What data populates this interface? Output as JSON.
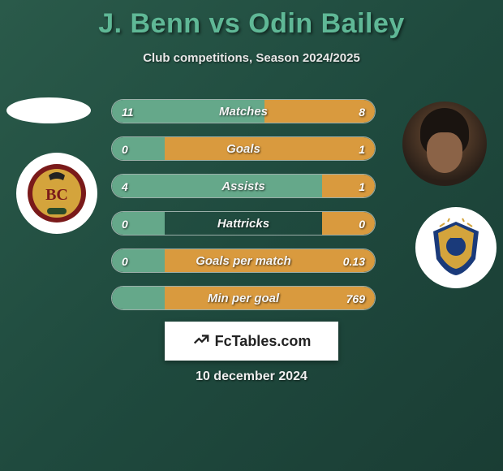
{
  "title": "J. Benn vs Odin Bailey",
  "subtitle": "Club competitions, Season 2024/2025",
  "date_text": "10 december 2024",
  "site_brand": "FcTables.com",
  "bar_color_left": "#65a88a",
  "bar_color_right": "#d99a3e",
  "background_gradient": [
    "#2a5a4a",
    "#1f4a3e",
    "#1a3d34"
  ],
  "title_color": "#5fb896",
  "stats": [
    {
      "label": "Matches",
      "left_val": "11",
      "right_val": "8",
      "left_pct": 58,
      "right_pct": 42
    },
    {
      "label": "Goals",
      "left_val": "0",
      "right_val": "1",
      "left_pct": 20,
      "right_pct": 80
    },
    {
      "label": "Assists",
      "left_val": "4",
      "right_val": "1",
      "left_pct": 80,
      "right_pct": 20
    },
    {
      "label": "Hattricks",
      "left_val": "0",
      "right_val": "0",
      "left_pct": 20,
      "right_pct": 20
    },
    {
      "label": "Goals per match",
      "left_val": "0",
      "right_val": "0.13",
      "left_pct": 20,
      "right_pct": 80
    },
    {
      "label": "Min per goal",
      "left_val": "",
      "right_val": "769",
      "left_pct": 20,
      "right_pct": 80
    }
  ],
  "players": {
    "left": {
      "name": "J. Benn",
      "club": "Bradford City"
    },
    "right": {
      "name": "Odin Bailey",
      "club": "Stockport County"
    }
  }
}
